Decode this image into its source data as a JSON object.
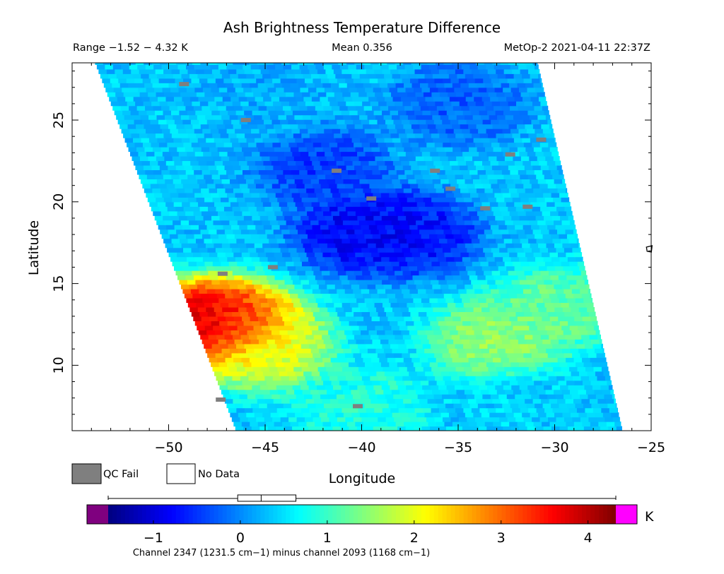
{
  "header": {
    "title": "Ash Brightness Temperature Difference",
    "range": "Range −1.52 − 4.32 K",
    "mean": "Mean 0.356",
    "satellite_time": "MetOp-2 2021-04-11 22:37Z"
  },
  "legend": {
    "qc_fail": "QC Fail",
    "no_data": "No Data",
    "qc_fail_color": "#7f7f7f",
    "no_data_color": "#ffffff"
  },
  "colorbar": {
    "unit": "K",
    "caption": "Channel 2347 (1231.5 cm−1) minus channel 2093 (1168 cm−1)",
    "min": -1.52,
    "max": 4.32,
    "ticks": [
      -1,
      0,
      1,
      2,
      3,
      4
    ],
    "tick_labels": [
      "−1",
      "0",
      "1",
      "2",
      "3",
      "4"
    ],
    "underflow_color": "#7f007f",
    "overflow_color": "#ff00ff",
    "boxplot": {
      "min": -1.52,
      "q1": -0.03,
      "median": 0.24,
      "q3": 0.64,
      "max": 4.32
    }
  },
  "chart_data": {
    "type": "heatmap",
    "title": "Ash Brightness Temperature Difference",
    "xlabel": "Longitude",
    "ylabel": "Latitude",
    "xlim": [
      -55,
      -25
    ],
    "ylim": [
      6,
      28.5
    ],
    "xticks": [
      -50,
      -45,
      -40,
      -35,
      -30,
      -25
    ],
    "xtick_labels": [
      "−50",
      "−45",
      "−40",
      "−35",
      "−30",
      "−25"
    ],
    "yticks": [
      10,
      15,
      20,
      25
    ],
    "ytick_labels": [
      "10",
      "15",
      "20",
      "25"
    ],
    "colormap": "jet",
    "value_range": [
      -1.52,
      4.32
    ],
    "mean": 0.356,
    "units": "K",
    "swath_corners_lonlat": [
      [
        -53.8,
        28.5
      ],
      [
        -30.9,
        28.5
      ],
      [
        -26.5,
        6.0
      ],
      [
        -46.5,
        6.0
      ]
    ],
    "field_features": [
      {
        "lon": -48.0,
        "lat": 12.6,
        "value": 4.3
      },
      {
        "lon": -46.5,
        "lat": 12.5,
        "value": 3.2
      },
      {
        "lon": -45.0,
        "lat": 11.0,
        "value": 2.0
      },
      {
        "lon": -40.0,
        "lat": 18.2,
        "value": -0.9
      },
      {
        "lon": -37.5,
        "lat": 18.1,
        "value": -0.8
      },
      {
        "lon": -42.0,
        "lat": 22.0,
        "value": -0.5
      },
      {
        "lon": -33.0,
        "lat": 11.5,
        "value": 1.6
      },
      {
        "lon": -30.0,
        "lat": 13.5,
        "value": 1.3
      },
      {
        "lon": -35.0,
        "lat": 26.0,
        "value": -0.3
      },
      {
        "lon": -45.0,
        "lat": 26.5,
        "value": 0.2
      },
      {
        "lon": -40.0,
        "lat": 7.5,
        "value": 0.9
      },
      {
        "lon": -32.0,
        "lat": 7.5,
        "value": 0.4
      }
    ],
    "qc_fail_points": [
      [
        -49.2,
        27.2
      ],
      [
        -46.0,
        25.0
      ],
      [
        -41.3,
        21.9
      ],
      [
        -36.2,
        21.9
      ],
      [
        -32.3,
        22.9
      ],
      [
        -35.4,
        20.8
      ],
      [
        -31.4,
        19.7
      ],
      [
        -33.6,
        19.6
      ],
      [
        -39.5,
        20.2
      ],
      [
        -30.7,
        23.8
      ],
      [
        -47.2,
        15.6
      ],
      [
        -44.6,
        16.0
      ],
      [
        -40.2,
        7.5
      ],
      [
        -47.3,
        7.9
      ]
    ],
    "annotations": [
      {
        "kind": "polygon-outline",
        "lon": -25.1,
        "lat": 17.1
      }
    ]
  }
}
